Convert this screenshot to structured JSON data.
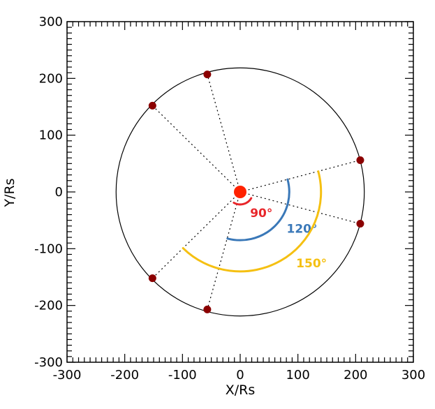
{
  "chart_data": {
    "type": "scatter",
    "xlabel": "X/Rs",
    "ylabel": "Y/Rs",
    "xlim": [
      -300,
      300
    ],
    "ylim": [
      -300,
      300
    ],
    "x_ticks": [
      -300,
      -200,
      -100,
      0,
      100,
      200,
      300
    ],
    "y_ticks": [
      300,
      200,
      100,
      0,
      -100,
      -200,
      -300
    ],
    "minor_tick_step": 10,
    "grid": false,
    "orbit_radius": 215,
    "center": {
      "x": 0,
      "y": 0,
      "color": "#ff2200"
    },
    "points": [
      {
        "x": -57,
        "y": 207
      },
      {
        "x": -152,
        "y": 152
      },
      {
        "x": 208,
        "y": 56
      },
      {
        "x": 208,
        "y": -56
      },
      {
        "x": -152,
        "y": -152
      },
      {
        "x": -57,
        "y": -207
      }
    ],
    "point_color": "#8b0000",
    "arcs": [
      {
        "label": "90°",
        "radius": 22,
        "start_deg": -30,
        "end_deg": -120,
        "color": "#e8262a"
      },
      {
        "label": "120°",
        "radius": 85,
        "start_deg": 15,
        "end_deg": -105,
        "color": "#3a78b8"
      },
      {
        "label": "150°",
        "radius": 140,
        "start_deg": 15,
        "end_deg": -135,
        "color": "#f5c012"
      }
    ]
  }
}
